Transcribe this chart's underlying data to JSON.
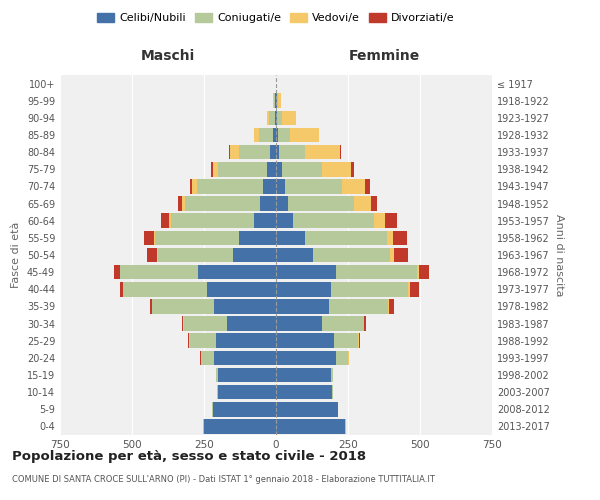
{
  "age_groups": [
    "0-4",
    "5-9",
    "10-14",
    "15-19",
    "20-24",
    "25-29",
    "30-34",
    "35-39",
    "40-44",
    "45-49",
    "50-54",
    "55-59",
    "60-64",
    "65-69",
    "70-74",
    "75-79",
    "80-84",
    "85-89",
    "90-94",
    "95-99",
    "100+"
  ],
  "birth_years": [
    "2013-2017",
    "2008-2012",
    "2003-2007",
    "1998-2002",
    "1993-1997",
    "1988-1992",
    "1983-1987",
    "1978-1982",
    "1973-1977",
    "1968-1972",
    "1963-1967",
    "1958-1962",
    "1953-1957",
    "1948-1952",
    "1943-1947",
    "1938-1942",
    "1933-1937",
    "1928-1932",
    "1923-1927",
    "1918-1922",
    "≤ 1917"
  ],
  "maschi": {
    "celibi": [
      250,
      220,
      200,
      200,
      215,
      210,
      170,
      215,
      240,
      270,
      150,
      130,
      75,
      55,
      45,
      30,
      20,
      10,
      5,
      2,
      0
    ],
    "coniugati": [
      2,
      2,
      5,
      10,
      45,
      90,
      150,
      215,
      290,
      270,
      260,
      290,
      290,
      260,
      230,
      170,
      110,
      50,
      20,
      5,
      0
    ],
    "vedovi": [
      0,
      0,
      0,
      0,
      2,
      2,
      2,
      2,
      2,
      2,
      3,
      5,
      8,
      10,
      15,
      20,
      30,
      15,
      5,
      2,
      0
    ],
    "divorziati": [
      0,
      0,
      0,
      0,
      2,
      5,
      5,
      5,
      10,
      20,
      35,
      35,
      25,
      15,
      10,
      5,
      2,
      0,
      0,
      0,
      0
    ]
  },
  "femmine": {
    "nubili": [
      240,
      215,
      195,
      190,
      210,
      200,
      160,
      185,
      190,
      210,
      130,
      100,
      60,
      40,
      30,
      20,
      12,
      8,
      5,
      2,
      0
    ],
    "coniugate": [
      2,
      2,
      4,
      8,
      40,
      85,
      145,
      205,
      270,
      280,
      265,
      285,
      280,
      230,
      200,
      140,
      90,
      40,
      15,
      5,
      0
    ],
    "vedove": [
      0,
      0,
      0,
      0,
      2,
      2,
      2,
      3,
      5,
      5,
      15,
      20,
      40,
      60,
      80,
      100,
      120,
      100,
      50,
      10,
      0
    ],
    "divorziate": [
      0,
      0,
      0,
      0,
      2,
      5,
      5,
      15,
      30,
      35,
      50,
      50,
      40,
      20,
      15,
      10,
      5,
      2,
      0,
      0,
      0
    ]
  },
  "colors": {
    "celibi": "#4472a8",
    "coniugati": "#b5c99a",
    "vedovi": "#f5c96a",
    "divorziati": "#c0392b"
  },
  "xlim": 750,
  "title": "Popolazione per età, sesso e stato civile - 2018",
  "subtitle": "COMUNE DI SANTA CROCE SULL'ARNO (PI) - Dati ISTAT 1° gennaio 2018 - Elaborazione TUTTITALIA.IT",
  "ylabel_left": "Fasce di età",
  "ylabel_right": "Anni di nascita",
  "xlabel_maschi": "Maschi",
  "xlabel_femmine": "Femmine",
  "legend_labels": [
    "Celibi/Nubili",
    "Coniugati/e",
    "Vedovi/e",
    "Divorziati/e"
  ]
}
